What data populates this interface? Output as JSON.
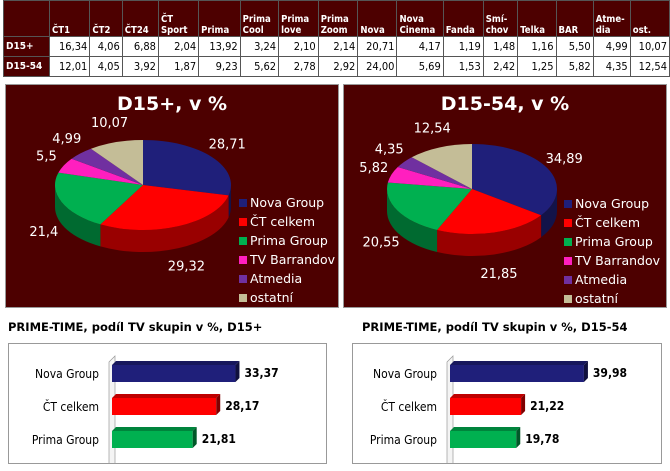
{
  "table": {
    "columns": [
      "ČT1",
      "ČT2",
      "ČT24",
      "ČT Sport",
      "Prima",
      "Prima Cool",
      "Prima love",
      "Prima Zoom",
      "Nova",
      "Nova Cinema",
      "Fanda",
      "Smí-chov",
      "Telka",
      "BAR",
      "Atme-dia",
      "ost."
    ],
    "rows": [
      {
        "label": "D15+",
        "values": [
          "16,34",
          "4,06",
          "6,88",
          "2,04",
          "13,92",
          "3,24",
          "2,10",
          "2,14",
          "20,71",
          "4,17",
          "1,19",
          "1,48",
          "1,16",
          "5,50",
          "4,99",
          "10,07"
        ]
      },
      {
        "label": "D15-54",
        "values": [
          "12,01",
          "4,05",
          "3,92",
          "1,87",
          "9,23",
          "5,62",
          "2,78",
          "2,92",
          "24,00",
          "5,69",
          "1,53",
          "2,42",
          "1,25",
          "5,82",
          "4,35",
          "12,54"
        ]
      }
    ]
  },
  "chart_data": [
    {
      "type": "pie",
      "title": "D15+, v %",
      "categories": [
        "Nova Group",
        "ČT celkem",
        "Prima Group",
        "TV Barrandov",
        "Atmedia",
        "ostatní"
      ],
      "values": [
        28.71,
        29.32,
        21.4,
        5.5,
        4.99,
        10.07
      ],
      "labels": [
        "28,71",
        "29,32",
        "21,4",
        "5,5",
        "4,99",
        "10,07"
      ],
      "legend": "right"
    },
    {
      "type": "pie",
      "title": "D15-54, v %",
      "categories": [
        "Nova Group",
        "ČT celkem",
        "Prima Group",
        "TV Barrandov",
        "Atmedia",
        "ostatní"
      ],
      "values": [
        34.89,
        21.85,
        20.55,
        5.82,
        4.35,
        12.54
      ],
      "labels": [
        "34,89",
        "21,85",
        "20,55",
        "5,82",
        "4,35",
        "12,54"
      ],
      "legend": "right"
    },
    {
      "type": "bar",
      "orientation": "horizontal",
      "title": "PRIME-TIME, podíl TV skupin v %, D15+",
      "categories": [
        "Nova Group",
        "ČT celkem",
        "Prima Group"
      ],
      "values": [
        33.37,
        28.17,
        21.81
      ],
      "labels": [
        "33,37",
        "28,17",
        "21,81"
      ]
    },
    {
      "type": "bar",
      "orientation": "horizontal",
      "title": "PRIME-TIME, podíl TV skupin v %, D15-54",
      "categories": [
        "Nova Group",
        "ČT celkem",
        "Prima Group"
      ],
      "values": [
        39.98,
        21.22,
        19.78
      ],
      "labels": [
        "39,98",
        "21,22",
        "19,78"
      ]
    }
  ],
  "colors": {
    "panel": "#4d0000",
    "series": [
      "#1f1f7a",
      "#ff0000",
      "#00b050",
      "#ff1fbf",
      "#7030a0",
      "#c4bd97"
    ]
  }
}
